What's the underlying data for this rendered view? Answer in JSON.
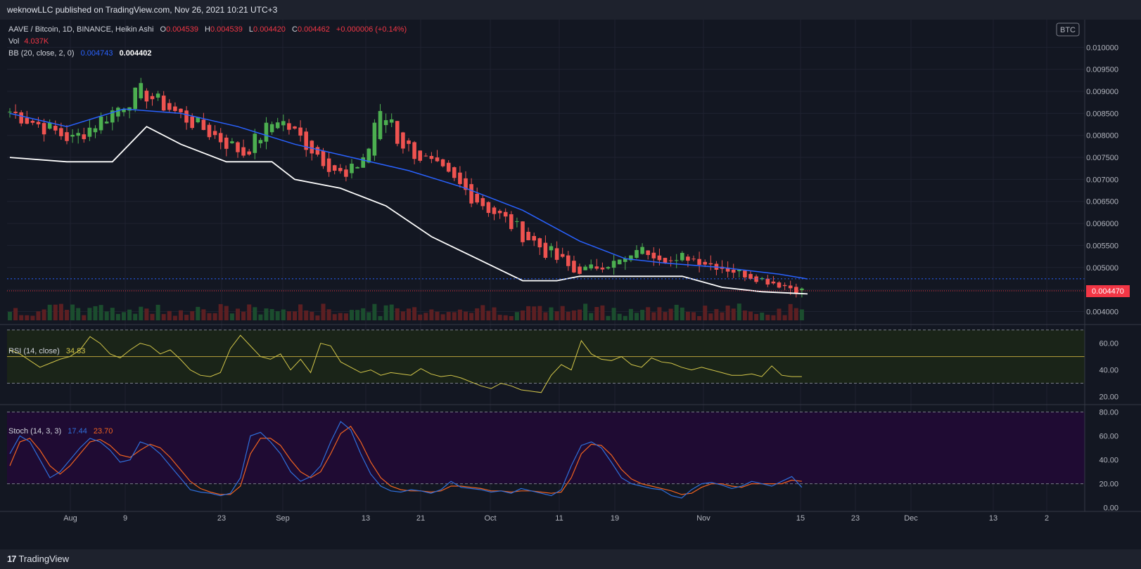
{
  "header": {
    "published_text": "weknowLLC published on TradingView.com, Nov 26, 2021 10:21 UTC+3"
  },
  "footer": {
    "brand": "TradingView"
  },
  "legend": {
    "symbol": "AAVE / Bitcoin, 1D, BINANCE, Heikin Ashi",
    "o_label": "O",
    "o_value": "0.004539",
    "h_label": "H",
    "h_value": "0.004539",
    "l_label": "L",
    "l_value": "0.004420",
    "c_label": "C",
    "c_value": "0.004462",
    "change": "+0.000006 (+0.14%)",
    "vol_label": "Vol",
    "vol_value": "4.037K",
    "bb_label": "BB (20, close, 2, 0)",
    "bb_upper": "0.004743",
    "bb_lower": "0.004402",
    "rsi_label": "RSI (14, close)",
    "rsi_value": "34.83",
    "stoch_label": "Stoch (14, 3, 3)",
    "stoch_k": "17.44",
    "stoch_d": "23.70",
    "currency_badge": "BTC",
    "last_price_tag": "0.004470"
  },
  "colors": {
    "up": "#26a69a",
    "up_candle": "#4caf50",
    "down": "#ef5350",
    "bb_upper": "#2962ff",
    "bb_lower": "#ffffff",
    "rsi": "#d4c74a",
    "stoch_k": "#2f6fdb",
    "stoch_d": "#f2631f",
    "price_tag": "#f23645"
  },
  "chart_data": [
    {
      "type": "candlestick",
      "title": "AAVE / Bitcoin, 1D, BINANCE, Heikin Ashi",
      "ylim": [
        0.0038,
        0.0105
      ],
      "y_ticks": [
        "0.004000",
        "0.004500",
        "0.005000",
        "0.005500",
        "0.006000",
        "0.006500",
        "0.007000",
        "0.007500",
        "0.008000",
        "0.008500",
        "0.009000",
        "0.009500",
        "0.010000"
      ],
      "x_ticks": [
        "Aug",
        "9",
        "23",
        "Sep",
        "13",
        "21",
        "Oct",
        "11",
        "19",
        "Nov",
        "15",
        "23",
        "Dec",
        "13",
        "2"
      ],
      "segments": [
        {
          "from_day": 0,
          "to_day": 12,
          "open": 0.0086,
          "close": 0.0079,
          "noise": 0.0002
        },
        {
          "from_day": 12,
          "to_day": 24,
          "open": 0.0079,
          "close": 0.009,
          "noise": 0.0002
        },
        {
          "from_day": 24,
          "to_day": 42,
          "open": 0.009,
          "close": 0.0076,
          "noise": 0.0002
        },
        {
          "from_day": 42,
          "to_day": 48,
          "open": 0.0076,
          "close": 0.0084,
          "noise": 0.0002
        },
        {
          "from_day": 48,
          "to_day": 60,
          "open": 0.0084,
          "close": 0.007,
          "noise": 0.0002
        },
        {
          "from_day": 60,
          "to_day": 64,
          "open": 0.007,
          "close": 0.0077,
          "noise": 0.0002
        },
        {
          "from_day": 64,
          "to_day": 68,
          "open": 0.0083,
          "close": 0.0084,
          "noise": 0.0003
        },
        {
          "from_day": 68,
          "to_day": 100,
          "open": 0.008,
          "close": 0.0049,
          "noise": 0.0002
        },
        {
          "from_day": 100,
          "to_day": 110,
          "open": 0.0049,
          "close": 0.0052,
          "noise": 0.0001
        },
        {
          "from_day": 110,
          "to_day": 118,
          "open": 0.0055,
          "close": 0.0051,
          "noise": 0.0001
        },
        {
          "from_day": 118,
          "to_day": 140,
          "open": 0.0053,
          "close": 0.00447,
          "noise": 0.0001
        }
      ],
      "bb_upper": [
        [
          0,
          0.0085
        ],
        [
          10,
          0.0082
        ],
        [
          20,
          0.0086
        ],
        [
          30,
          0.0085
        ],
        [
          40,
          0.0082
        ],
        [
          50,
          0.0078
        ],
        [
          60,
          0.0075
        ],
        [
          70,
          0.0072
        ],
        [
          80,
          0.0068
        ],
        [
          90,
          0.0063
        ],
        [
          100,
          0.0056
        ],
        [
          108,
          0.0052
        ],
        [
          115,
          0.0051
        ],
        [
          125,
          0.005
        ],
        [
          135,
          0.00485
        ],
        [
          140,
          0.00474
        ]
      ],
      "bb_lower": [
        [
          0,
          0.0075
        ],
        [
          10,
          0.0074
        ],
        [
          18,
          0.0074
        ],
        [
          24,
          0.0082
        ],
        [
          30,
          0.0078
        ],
        [
          38,
          0.0074
        ],
        [
          46,
          0.0074
        ],
        [
          50,
          0.007
        ],
        [
          58,
          0.0068
        ],
        [
          66,
          0.0064
        ],
        [
          74,
          0.0057
        ],
        [
          82,
          0.0052
        ],
        [
          90,
          0.0047
        ],
        [
          96,
          0.0047
        ],
        [
          100,
          0.0048
        ],
        [
          110,
          0.0048
        ],
        [
          118,
          0.0048
        ],
        [
          125,
          0.00455
        ],
        [
          132,
          0.00445
        ],
        [
          140,
          0.0044
        ]
      ],
      "last_price": 0.00447,
      "upper_band_level": 0.004743
    },
    {
      "type": "line",
      "title": "RSI (14, close)",
      "ylim": [
        15,
        73
      ],
      "y_ticks": [
        "20.00",
        "40.00",
        "60.00"
      ],
      "bands": [
        30,
        50,
        70
      ],
      "series": [
        {
          "name": "RSI",
          "values": [
            55,
            52,
            47,
            42,
            45,
            48,
            50,
            55,
            65,
            60,
            52,
            49,
            55,
            60,
            58,
            52,
            55,
            48,
            40,
            36,
            35,
            38,
            56,
            66,
            58,
            50,
            48,
            52,
            40,
            48,
            38,
            60,
            58,
            46,
            42,
            38,
            40,
            36,
            38,
            37,
            36,
            41,
            37,
            35,
            36,
            34,
            31,
            28,
            26,
            30,
            28,
            25,
            24,
            23,
            36,
            44,
            40,
            62,
            52,
            48,
            47,
            50,
            44,
            42,
            49,
            46,
            45,
            42,
            40,
            42,
            40,
            38,
            36,
            36,
            37,
            35,
            43,
            36,
            35,
            35
          ]
        }
      ]
    },
    {
      "type": "line",
      "title": "Stoch (14, 3, 3)",
      "ylim": [
        -2,
        85
      ],
      "y_ticks": [
        "0.00",
        "20.00",
        "40.00",
        "60.00",
        "80.00"
      ],
      "bands": [
        20,
        80
      ],
      "series": [
        {
          "name": "%K",
          "values": [
            45,
            60,
            55,
            40,
            25,
            30,
            40,
            50,
            58,
            55,
            48,
            38,
            40,
            55,
            52,
            45,
            35,
            25,
            15,
            13,
            12,
            10,
            12,
            25,
            60,
            63,
            55,
            45,
            30,
            22,
            26,
            35,
            55,
            72,
            65,
            45,
            28,
            18,
            14,
            13,
            15,
            14,
            12,
            15,
            22,
            17,
            16,
            15,
            13,
            14,
            12,
            16,
            14,
            12,
            10,
            15,
            35,
            52,
            55,
            50,
            38,
            25,
            20,
            18,
            16,
            15,
            10,
            8,
            15,
            20,
            21,
            19,
            16,
            18,
            22,
            20,
            18,
            22,
            26,
            17
          ]
        },
        {
          "name": "%D",
          "values": [
            35,
            55,
            58,
            48,
            35,
            28,
            35,
            45,
            55,
            57,
            52,
            44,
            42,
            48,
            53,
            50,
            42,
            32,
            22,
            16,
            13,
            11,
            11,
            18,
            45,
            58,
            58,
            52,
            40,
            30,
            25,
            30,
            45,
            62,
            68,
            55,
            38,
            25,
            18,
            15,
            14,
            14,
            13,
            14,
            18,
            18,
            17,
            16,
            14,
            14,
            13,
            14,
            14,
            13,
            12,
            13,
            25,
            45,
            53,
            52,
            44,
            32,
            24,
            20,
            18,
            16,
            14,
            11,
            12,
            17,
            20,
            20,
            18,
            17,
            20,
            20,
            20,
            20,
            23,
            22
          ]
        }
      ]
    }
  ]
}
